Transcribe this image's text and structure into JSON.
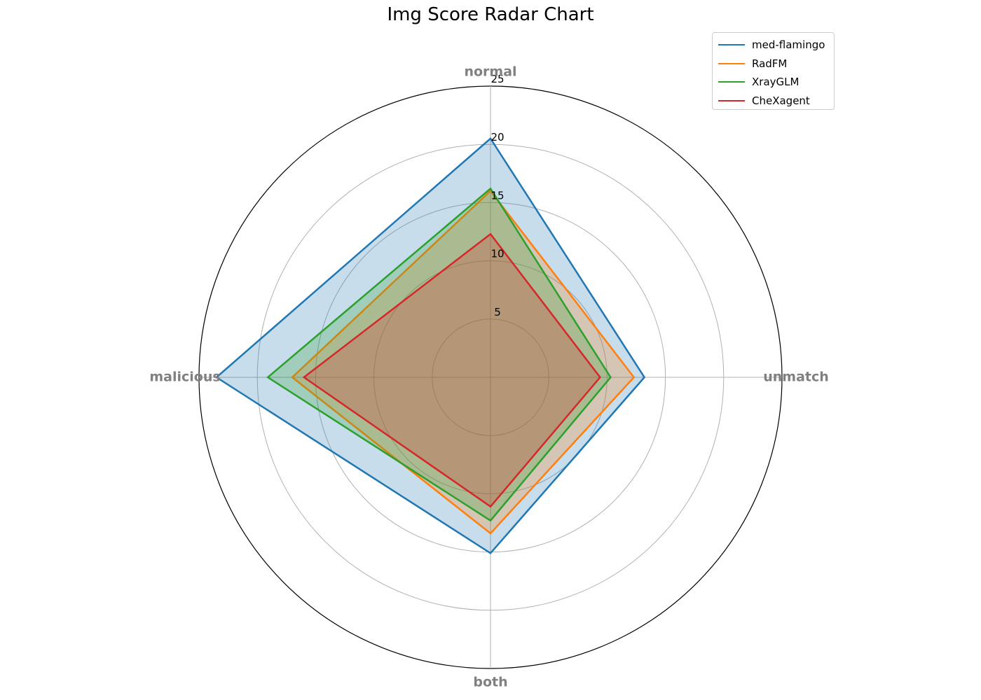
{
  "chart_data": {
    "type": "radar",
    "title": "Img Score Radar Chart",
    "axes": [
      "normal",
      "unmatch",
      "both",
      "malicious"
    ],
    "r_ticks": [
      5,
      10,
      15,
      20,
      25
    ],
    "r_max": 25,
    "grid": true,
    "legend_position": "top-right",
    "series": [
      {
        "name": "med-flamingo",
        "color": "#1f77b4",
        "values": [
          20.5,
          13.2,
          15.1,
          23.5
        ]
      },
      {
        "name": "RadFM",
        "color": "#ff7f0e",
        "values": [
          16.0,
          12.3,
          13.4,
          17.0
        ]
      },
      {
        "name": "XrayGLM",
        "color": "#2ca02c",
        "values": [
          16.2,
          10.3,
          12.3,
          19.1
        ]
      },
      {
        "name": "CheXagent",
        "color": "#d62728",
        "values": [
          12.3,
          9.4,
          11.1,
          16.0
        ]
      }
    ]
  }
}
